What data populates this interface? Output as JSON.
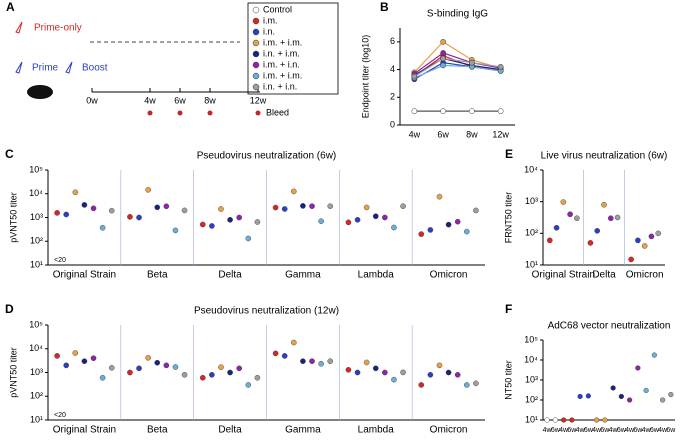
{
  "schematic": {
    "panel_label": "A",
    "prime_only": "Prime-only",
    "prime": "Prime",
    "boost": "Boost",
    "timepoints": [
      "0w",
      "4w",
      "6w",
      "8w",
      "12w"
    ],
    "bleed": "Bleed"
  },
  "chart_data": [
    {
      "panel_label": "B",
      "type": "line",
      "title": "S-binding IgG",
      "ylabel": "Endpoint titer (log10)",
      "categories": [
        "4w",
        "6w",
        "8w",
        "12w"
      ],
      "ylim": [
        0,
        7
      ],
      "yticks": [
        0,
        2,
        4,
        6
      ],
      "series": [
        {
          "name": "Control",
          "color": "#ffffff",
          "values": [
            1,
            1,
            1,
            1
          ]
        },
        {
          "name": "i.m.",
          "color": "#d62728",
          "values": [
            3.5,
            5.0,
            4.2,
            4.0
          ]
        },
        {
          "name": "i.n.",
          "color": "#2a3fc4",
          "values": [
            3.3,
            4.5,
            4.2,
            3.9
          ]
        },
        {
          "name": "i.m. + i.m.",
          "color": "#e8a04a",
          "values": [
            3.8,
            6.0,
            4.7,
            4.1
          ]
        },
        {
          "name": "i.n. + i.m.",
          "color": "#1a237e",
          "values": [
            3.6,
            4.8,
            4.3,
            4.0
          ]
        },
        {
          "name": "i.m. + i.n.",
          "color": "#8e24aa",
          "values": [
            3.7,
            5.2,
            4.5,
            4.1
          ]
        },
        {
          "name": "i.m. + i.m.",
          "color": "#6baed6",
          "values": [
            3.4,
            4.3,
            4.2,
            3.9
          ]
        },
        {
          "name": "i.n. + i.n.",
          "color": "#9e9e9e",
          "values": [
            3.5,
            4.8,
            4.5,
            4.2
          ]
        }
      ]
    },
    {
      "panel_label": "C",
      "type": "dot",
      "title": "Pseudovirus neutralization (6w)",
      "ylabel": "pVNT50 titer",
      "log_y": true,
      "categories": [
        "Original Strain",
        "Beta",
        "Delta",
        "Gamma",
        "Lambda",
        "Omicron"
      ],
      "lod_label": "<20",
      "ylim": [
        10,
        100000
      ],
      "yticks": [
        {
          "value": 10,
          "label": "10¹"
        },
        {
          "value": 100,
          "label": "10²"
        },
        {
          "value": 1000,
          "label": "10³"
        },
        {
          "value": 10000,
          "label": "10⁴"
        },
        {
          "value": 100000,
          "label": "10⁵"
        }
      ],
      "series": [
        {
          "color": "#d62728",
          "values": [
            1565,
            1065,
            508,
            2626,
            624,
            200
          ]
        },
        {
          "color": "#2a3fc4",
          "values": [
            1341,
            1000,
            442,
            2286,
            800,
            300
          ]
        },
        {
          "color": "#e8a04a",
          "values": [
            11535,
            14618,
            2274,
            12569,
            2649,
            7519
          ]
        },
        {
          "color": "#1a237e",
          "values": [
            3400,
            2681,
            800,
            3084,
            1130,
            500
          ]
        },
        {
          "color": "#8e24aa",
          "values": [
            2440,
            2967,
            1000,
            3000,
            1000,
            666
          ]
        },
        {
          "color": "#6baed6",
          "values": [
            370,
            287,
            131,
            700,
            378,
            255
          ]
        },
        {
          "color": "#9e9e9e",
          "values": [
            1936,
            1987,
            648,
            3000,
            3000,
            1979
          ]
        }
      ]
    },
    {
      "panel_label": "E",
      "type": "dot",
      "title": "Live virus neutralization (6w)",
      "ylabel": "FRNT50 titer",
      "log_y": true,
      "categories": [
        "Original Strain",
        "Delta",
        "Omicron"
      ],
      "ylim": [
        10,
        10000
      ],
      "yticks": [
        {
          "value": 10,
          "label": "10¹"
        },
        {
          "value": 100,
          "label": "10²"
        },
        {
          "value": 1000,
          "label": "10³"
        },
        {
          "value": 10000,
          "label": "10⁴"
        }
      ],
      "series": [
        {
          "color": "#d62728",
          "values": [
            60,
            50,
            15
          ]
        },
        {
          "color": "#2a3fc4",
          "values": [
            150,
            120,
            60
          ]
        },
        {
          "color": "#e8a04a",
          "values": [
            973,
            800,
            40
          ]
        },
        {
          "color": "#8e24aa",
          "values": [
            400,
            300,
            80
          ]
        },
        {
          "color": "#9e9e9e",
          "values": [
            300,
            317,
            100
          ]
        }
      ]
    },
    {
      "panel_label": "D",
      "type": "dot",
      "title": "Pseudovirus neutralization (12w)",
      "ylabel": "pVNT50 titer",
      "log_y": true,
      "categories": [
        "Original Strain",
        "Beta",
        "Delta",
        "Gamma",
        "Lambda",
        "Omicron"
      ],
      "lod_label": "<20",
      "ylim": [
        10,
        100000
      ],
      "yticks": [
        {
          "value": 10,
          "label": "10¹"
        },
        {
          "value": 100,
          "label": "10²"
        },
        {
          "value": 1000,
          "label": "10³"
        },
        {
          "value": 10000,
          "label": "10⁴"
        },
        {
          "value": 100000,
          "label": "10⁵"
        }
      ],
      "series": [
        {
          "color": "#d62728",
          "values": [
            5000,
            1000,
            600,
            6394,
            1300,
            300
          ]
        },
        {
          "color": "#2a3fc4",
          "values": [
            2000,
            1500,
            800,
            5000,
            1000,
            800
          ]
        },
        {
          "color": "#e8a04a",
          "values": [
            6614,
            4150,
            1675,
            18277,
            2651,
            2000
          ]
        },
        {
          "color": "#1a237e",
          "values": [
            3000,
            2581,
            1000,
            3000,
            1500,
            1000
          ]
        },
        {
          "color": "#8e24aa",
          "values": [
            4000,
            2000,
            1500,
            3000,
            1000,
            800
          ]
        },
        {
          "color": "#6baed6",
          "values": [
            600,
            1704,
            300,
            2334,
            500,
            300
          ]
        },
        {
          "color": "#9e9e9e",
          "values": [
            1577,
            800,
            600,
            3000,
            1009,
            350
          ]
        }
      ]
    },
    {
      "panel_label": "F",
      "type": "dot",
      "title": "AdC68 vector neutralization",
      "ylabel": "NT50 titer",
      "log_y": true,
      "categories": [
        "4w",
        "6w",
        "4w",
        "6w",
        "4w",
        "6w",
        "4w",
        "6w",
        "4w",
        "6w",
        "4w",
        "6w",
        "4w",
        "6w",
        "4w",
        "6w"
      ],
      "ylim": [
        10,
        100000
      ],
      "yticks": [
        {
          "value": 10,
          "label": "10¹"
        },
        {
          "value": 100,
          "label": "10²"
        },
        {
          "value": 1000,
          "label": "10³"
        },
        {
          "value": 10000,
          "label": "10⁴"
        },
        {
          "value": 100000,
          "label": "10⁵"
        }
      ],
      "values": [
        10,
        10,
        10,
        10,
        150,
        160,
        10,
        10,
        400,
        150,
        100,
        3987,
        300,
        17644,
        100,
        187
      ],
      "colors": [
        "#ffffff",
        "#ffffff",
        "#d62728",
        "#d62728",
        "#2a3fc4",
        "#2a3fc4",
        "#e8a04a",
        "#e8a04a",
        "#1a237e",
        "#1a237e",
        "#8e24aa",
        "#8e24aa",
        "#6baed6",
        "#6baed6",
        "#9e9e9e",
        "#9e9e9e"
      ]
    }
  ]
}
